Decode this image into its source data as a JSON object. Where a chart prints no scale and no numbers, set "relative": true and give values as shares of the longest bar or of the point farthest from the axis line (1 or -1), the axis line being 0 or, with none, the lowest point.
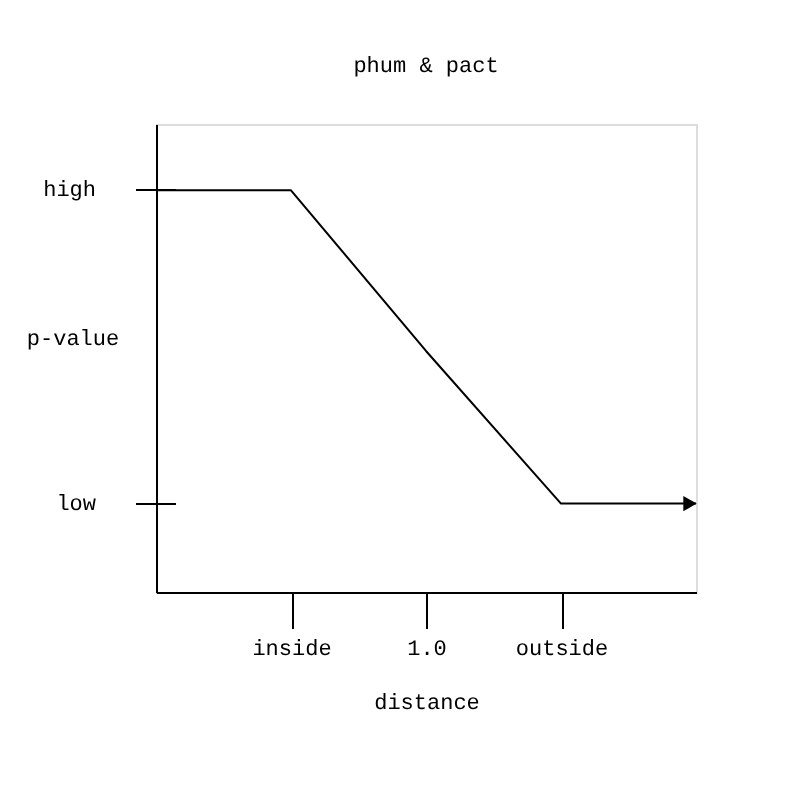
{
  "chart_data": {
    "type": "line",
    "title": "phum & pact",
    "xlabel": "distance",
    "ylabel": "p-value",
    "categories": [
      null,
      "inside",
      "1.0",
      "outside",
      null
    ],
    "series": [
      {
        "color": "#000000",
        "values": [
          1,
          1,
          0.6,
          0.22,
          0.22
        ]
      }
    ],
    "relative": true,
    "annotations": [
      "high",
      "low"
    ],
    "grid": false,
    "marker": "none",
    "line_style": "solid"
  }
}
